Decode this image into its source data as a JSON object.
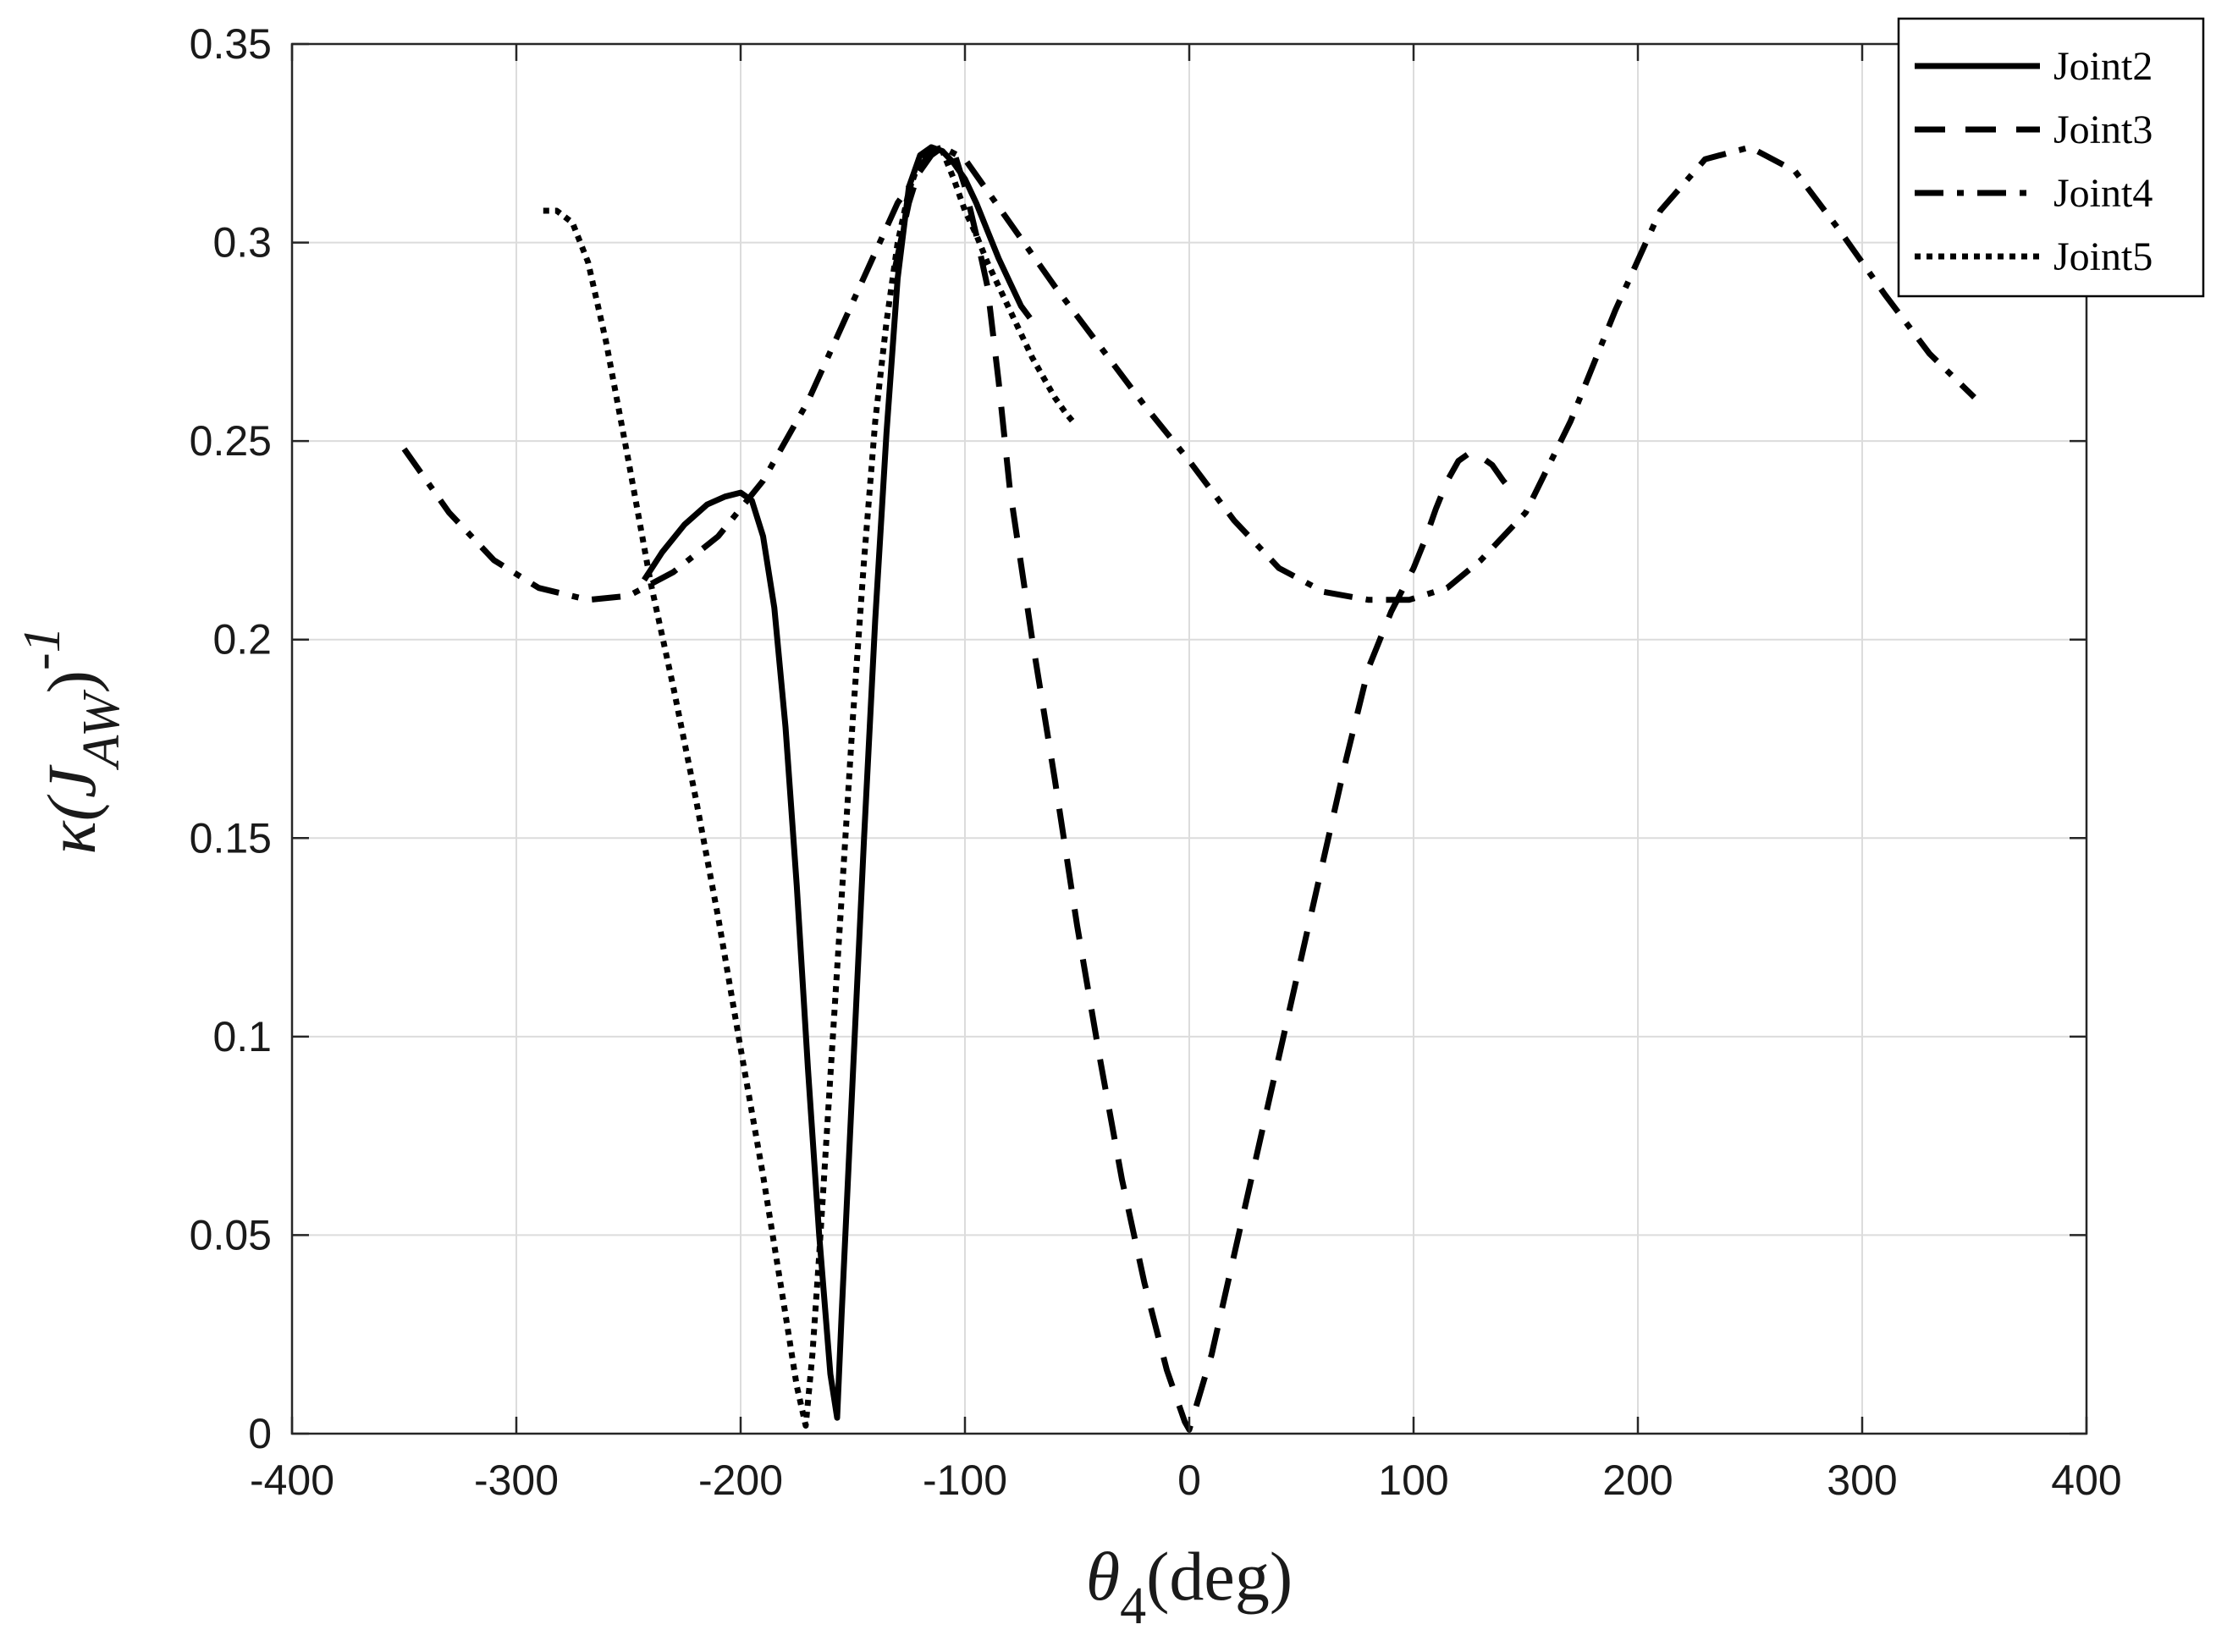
{
  "chart_data": {
    "type": "line",
    "title": "",
    "xlabel": {
      "main": "θ",
      "sub": "4",
      "rest": "(deg)"
    },
    "ylabel": {
      "pre": "κ(J",
      "sub": "AW",
      "post": ")",
      "sup": "-1"
    },
    "xlim": [
      -400,
      400
    ],
    "ylim": [
      0,
      0.35
    ],
    "xticks": [
      -400,
      -300,
      -200,
      -100,
      0,
      100,
      200,
      300,
      400
    ],
    "yticks": [
      0,
      0.05,
      0.1,
      0.15,
      0.2,
      0.25,
      0.3,
      0.35
    ],
    "xtick_labels": [
      "-400",
      "-300",
      "-200",
      "-100",
      "0",
      "100",
      "200",
      "300",
      "400"
    ],
    "ytick_labels": [
      "0",
      "0.05",
      "0.1",
      "0.15",
      "0.2",
      "0.25",
      "0.3",
      "0.35"
    ],
    "grid": true,
    "legend_position": "top-right",
    "series": [
      {
        "name": "Joint2",
        "style": "solid",
        "color": "#000000",
        "x": [
          -243,
          -235,
          -225,
          -215,
          -207,
          -200,
          -195,
          -190,
          -185,
          -180,
          -175,
          -170,
          -165,
          -160,
          -157,
          -155,
          -150,
          -145,
          -140,
          -135,
          -130,
          -125,
          -120,
          -115,
          -110,
          -105,
          -100,
          -95,
          -90,
          -85,
          -80,
          -75,
          -71
        ],
        "y": [
          0.215,
          0.222,
          0.229,
          0.234,
          0.236,
          0.237,
          0.235,
          0.226,
          0.208,
          0.178,
          0.138,
          0.092,
          0.05,
          0.015,
          0.004,
          0.03,
          0.09,
          0.15,
          0.205,
          0.252,
          0.291,
          0.314,
          0.322,
          0.324,
          0.323,
          0.32,
          0.316,
          0.31,
          0.303,
          0.296,
          0.29,
          0.284,
          0.281
        ]
      },
      {
        "name": "Joint3",
        "style": "dashed",
        "color": "#000000",
        "x": [
          -131,
          -125,
          -120,
          -115,
          -110,
          -105,
          -100,
          -95,
          -90,
          -85,
          -80,
          -70,
          -60,
          -50,
          -40,
          -30,
          -20,
          -10,
          -2,
          0,
          10,
          20,
          30,
          40,
          50,
          60,
          70,
          80,
          90,
          100,
          105,
          110,
          115,
          120,
          125,
          130,
          135,
          140,
          143
        ],
        "y": [
          0.294,
          0.31,
          0.319,
          0.323,
          0.324,
          0.323,
          0.314,
          0.302,
          0.289,
          0.265,
          0.238,
          0.2,
          0.165,
          0.128,
          0.095,
          0.064,
          0.038,
          0.016,
          0.003,
          0.001,
          0.02,
          0.045,
          0.07,
          0.095,
          0.12,
          0.145,
          0.17,
          0.193,
          0.207,
          0.218,
          0.225,
          0.233,
          0.24,
          0.245,
          0.247,
          0.246,
          0.244,
          0.24,
          0.238
        ]
      },
      {
        "name": "Joint4",
        "style": "dashdot",
        "color": "#000000",
        "x": [
          -350,
          -330,
          -310,
          -290,
          -268,
          -250,
          -230,
          -210,
          -190,
          -170,
          -150,
          -130,
          -115,
          -110,
          -100,
          -80,
          -60,
          -40,
          -20,
          0,
          20,
          40,
          60,
          80,
          98,
          115,
          130,
          150,
          170,
          190,
          210,
          230,
          250,
          270,
          290,
          310,
          330,
          350
        ],
        "y": [
          0.248,
          0.232,
          0.22,
          0.213,
          0.21,
          0.211,
          0.217,
          0.226,
          0.24,
          0.26,
          0.285,
          0.31,
          0.322,
          0.324,
          0.321,
          0.305,
          0.289,
          0.274,
          0.259,
          0.245,
          0.23,
          0.218,
          0.212,
          0.21,
          0.21,
          0.213,
          0.22,
          0.232,
          0.255,
          0.283,
          0.308,
          0.321,
          0.324,
          0.318,
          0.303,
          0.287,
          0.272,
          0.261
        ]
      },
      {
        "name": "Joint5",
        "style": "dotted",
        "color": "#000000",
        "x": [
          -288,
          -282,
          -275,
          -268,
          -260,
          -250,
          -240,
          -230,
          -220,
          -210,
          -200,
          -190,
          -180,
          -175,
          -171,
          -168,
          -165,
          -160,
          -155,
          -150,
          -145,
          -140,
          -135,
          -130,
          -125,
          -120,
          -115,
          -110,
          -105,
          -100,
          -95,
          -90,
          -85,
          -80,
          -75,
          -70,
          -65,
          -60,
          -55,
          -52
        ],
        "y": [
          0.308,
          0.308,
          0.305,
          0.295,
          0.275,
          0.245,
          0.214,
          0.188,
          0.16,
          0.13,
          0.097,
          0.065,
          0.03,
          0.012,
          0.002,
          0.02,
          0.045,
          0.09,
          0.135,
          0.18,
          0.22,
          0.255,
          0.28,
          0.3,
          0.313,
          0.321,
          0.324,
          0.323,
          0.316,
          0.308,
          0.302,
          0.295,
          0.289,
          0.283,
          0.277,
          0.271,
          0.266,
          0.261,
          0.257,
          0.255
        ]
      }
    ]
  }
}
